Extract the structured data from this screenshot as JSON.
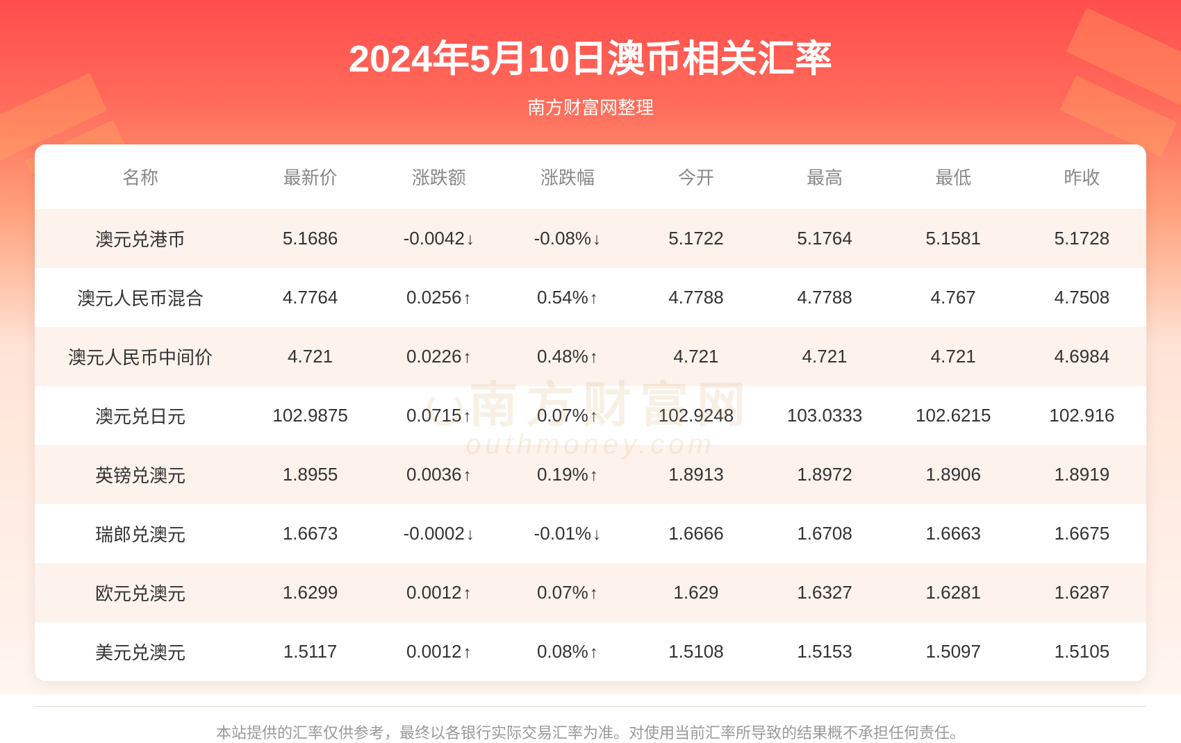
{
  "header": {
    "title": "2024年5月10日澳币相关汇率",
    "subtitle": "南方财富网整理"
  },
  "watermark": {
    "cn": "南方财富网",
    "en": "outhmoney.com"
  },
  "table": {
    "columns": [
      "名称",
      "最新价",
      "涨跌额",
      "涨跌幅",
      "今开",
      "最高",
      "最低",
      "昨收"
    ],
    "rows": [
      {
        "name": "澳元兑港币",
        "latest": "5.1686",
        "change": "-0.0042",
        "changePercent": "-0.08%",
        "direction": "down",
        "open": "5.1722",
        "high": "5.1764",
        "low": "5.1581",
        "prevClose": "5.1728"
      },
      {
        "name": "澳元人民币混合",
        "latest": "4.7764",
        "change": "0.0256",
        "changePercent": "0.54%",
        "direction": "up",
        "open": "4.7788",
        "high": "4.7788",
        "low": "4.767",
        "prevClose": "4.7508"
      },
      {
        "name": "澳元人民币中间价",
        "latest": "4.721",
        "change": "0.0226",
        "changePercent": "0.48%",
        "direction": "up",
        "open": "4.721",
        "high": "4.721",
        "low": "4.721",
        "prevClose": "4.6984"
      },
      {
        "name": "澳元兑日元",
        "latest": "102.9875",
        "change": "0.0715",
        "changePercent": "0.07%",
        "direction": "up",
        "open": "102.9248",
        "high": "103.0333",
        "low": "102.6215",
        "prevClose": "102.916"
      },
      {
        "name": "英镑兑澳元",
        "latest": "1.8955",
        "change": "0.0036",
        "changePercent": "0.19%",
        "direction": "up",
        "open": "1.8913",
        "high": "1.8972",
        "low": "1.8906",
        "prevClose": "1.8919"
      },
      {
        "name": "瑞郎兑澳元",
        "latest": "1.6673",
        "change": "-0.0002",
        "changePercent": "-0.01%",
        "direction": "down",
        "open": "1.6666",
        "high": "1.6708",
        "low": "1.6663",
        "prevClose": "1.6675"
      },
      {
        "name": "欧元兑澳元",
        "latest": "1.6299",
        "change": "0.0012",
        "changePercent": "0.07%",
        "direction": "up",
        "open": "1.629",
        "high": "1.6327",
        "low": "1.6281",
        "prevClose": "1.6287"
      },
      {
        "name": "美元兑澳元",
        "latest": "1.5117",
        "change": "0.0012",
        "changePercent": "0.08%",
        "direction": "up",
        "open": "1.5108",
        "high": "1.5153",
        "low": "1.5097",
        "prevClose": "1.5105"
      }
    ]
  },
  "disclaimer": "本站提供的汇率仅供参考，最终以各银行实际交易汇率为准。对使用当前汇率所导致的结果概不承担任何责任。",
  "styling": {
    "colors": {
      "up": "#e84b4b",
      "down": "#0fa85a",
      "text": "#333333",
      "headerText": "#888888",
      "disclaimerText": "#999999",
      "rowOdd": "#fdf2ec",
      "rowEven": "#ffffff",
      "bgGradientStart": "#ff4d4d",
      "bgGradientEnd": "#fff5f0",
      "watermark": "#d4a05a"
    },
    "fontSize": {
      "title": 54,
      "subtitle": 26,
      "tableHeader": 26,
      "tableCell": 26,
      "disclaimer": 22
    },
    "arrows": {
      "up": "↑",
      "down": "↓"
    }
  }
}
